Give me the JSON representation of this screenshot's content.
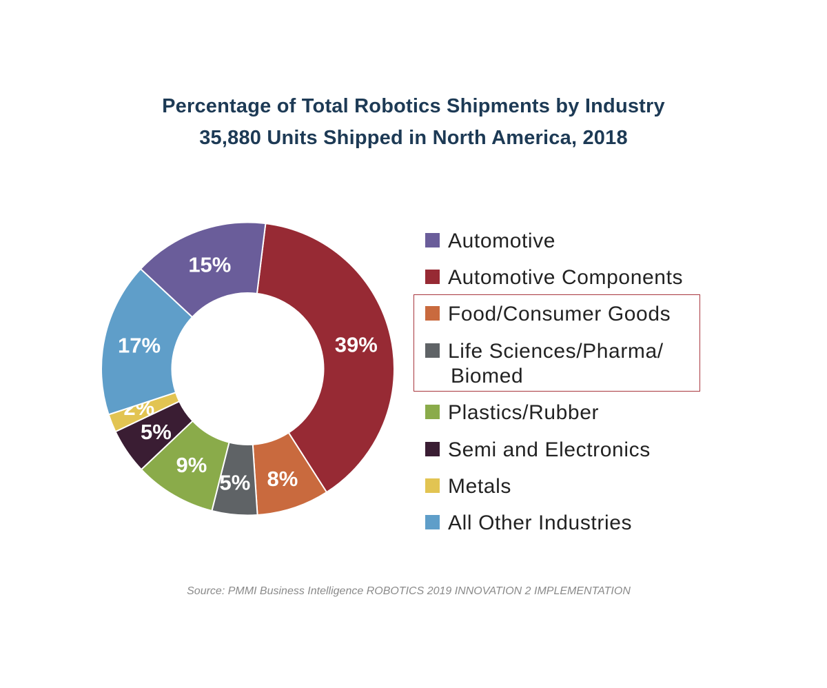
{
  "chart_data": {
    "type": "pie",
    "donut": true,
    "title": "Percentage of Total Robotics Shipments by Industry",
    "subtitle": "35,880 Units Shipped in North America, 2018",
    "legend_position": "right",
    "slices": [
      {
        "name": "Automotive Components",
        "value": 39,
        "label": "39%",
        "color": "#972a34"
      },
      {
        "name": "Food/Consumer Goods",
        "value": 8,
        "label": "8%",
        "color": "#c96a3e"
      },
      {
        "name": "Life Sciences/Pharma/ Biomed",
        "value": 5,
        "label": "5%",
        "color": "#5f6366"
      },
      {
        "name": "Plastics/Rubber",
        "value": 9,
        "label": "9%",
        "color": "#8aab4a"
      },
      {
        "name": "Semi and Electronics",
        "value": 5,
        "label": "5%",
        "color": "#3a1d33"
      },
      {
        "name": "Metals",
        "value": 2,
        "label": "2%",
        "color": "#e2c452"
      },
      {
        "name": "All Other Industries",
        "value": 17,
        "label": "17%",
        "color": "#5f9ec9"
      },
      {
        "name": "Automotive",
        "value": 15,
        "label": "15%",
        "color": "#6a5d9a"
      }
    ],
    "legend": [
      {
        "label": "Automotive",
        "color": "#6a5d9a"
      },
      {
        "label": "Automotive Components",
        "color": "#972a34"
      },
      {
        "label": "Food/Consumer Goods",
        "color": "#c96a3e",
        "highlighted": true
      },
      {
        "label": "Life Sciences/Pharma/",
        "label2": "Biomed",
        "color": "#5f6366",
        "highlighted": true
      },
      {
        "label": "Plastics/Rubber",
        "color": "#8aab4a"
      },
      {
        "label": "Semi and Electronics",
        "color": "#3a1d33"
      },
      {
        "label": "Metals",
        "color": "#e2c452"
      },
      {
        "label": "All Other Industries",
        "color": "#5f9ec9"
      }
    ],
    "highlight_color": "#a7343c",
    "source": "Source: PMMI Business Intelligence ROBOTICS 2019 INNOVATION 2 IMPLEMENTATION"
  }
}
